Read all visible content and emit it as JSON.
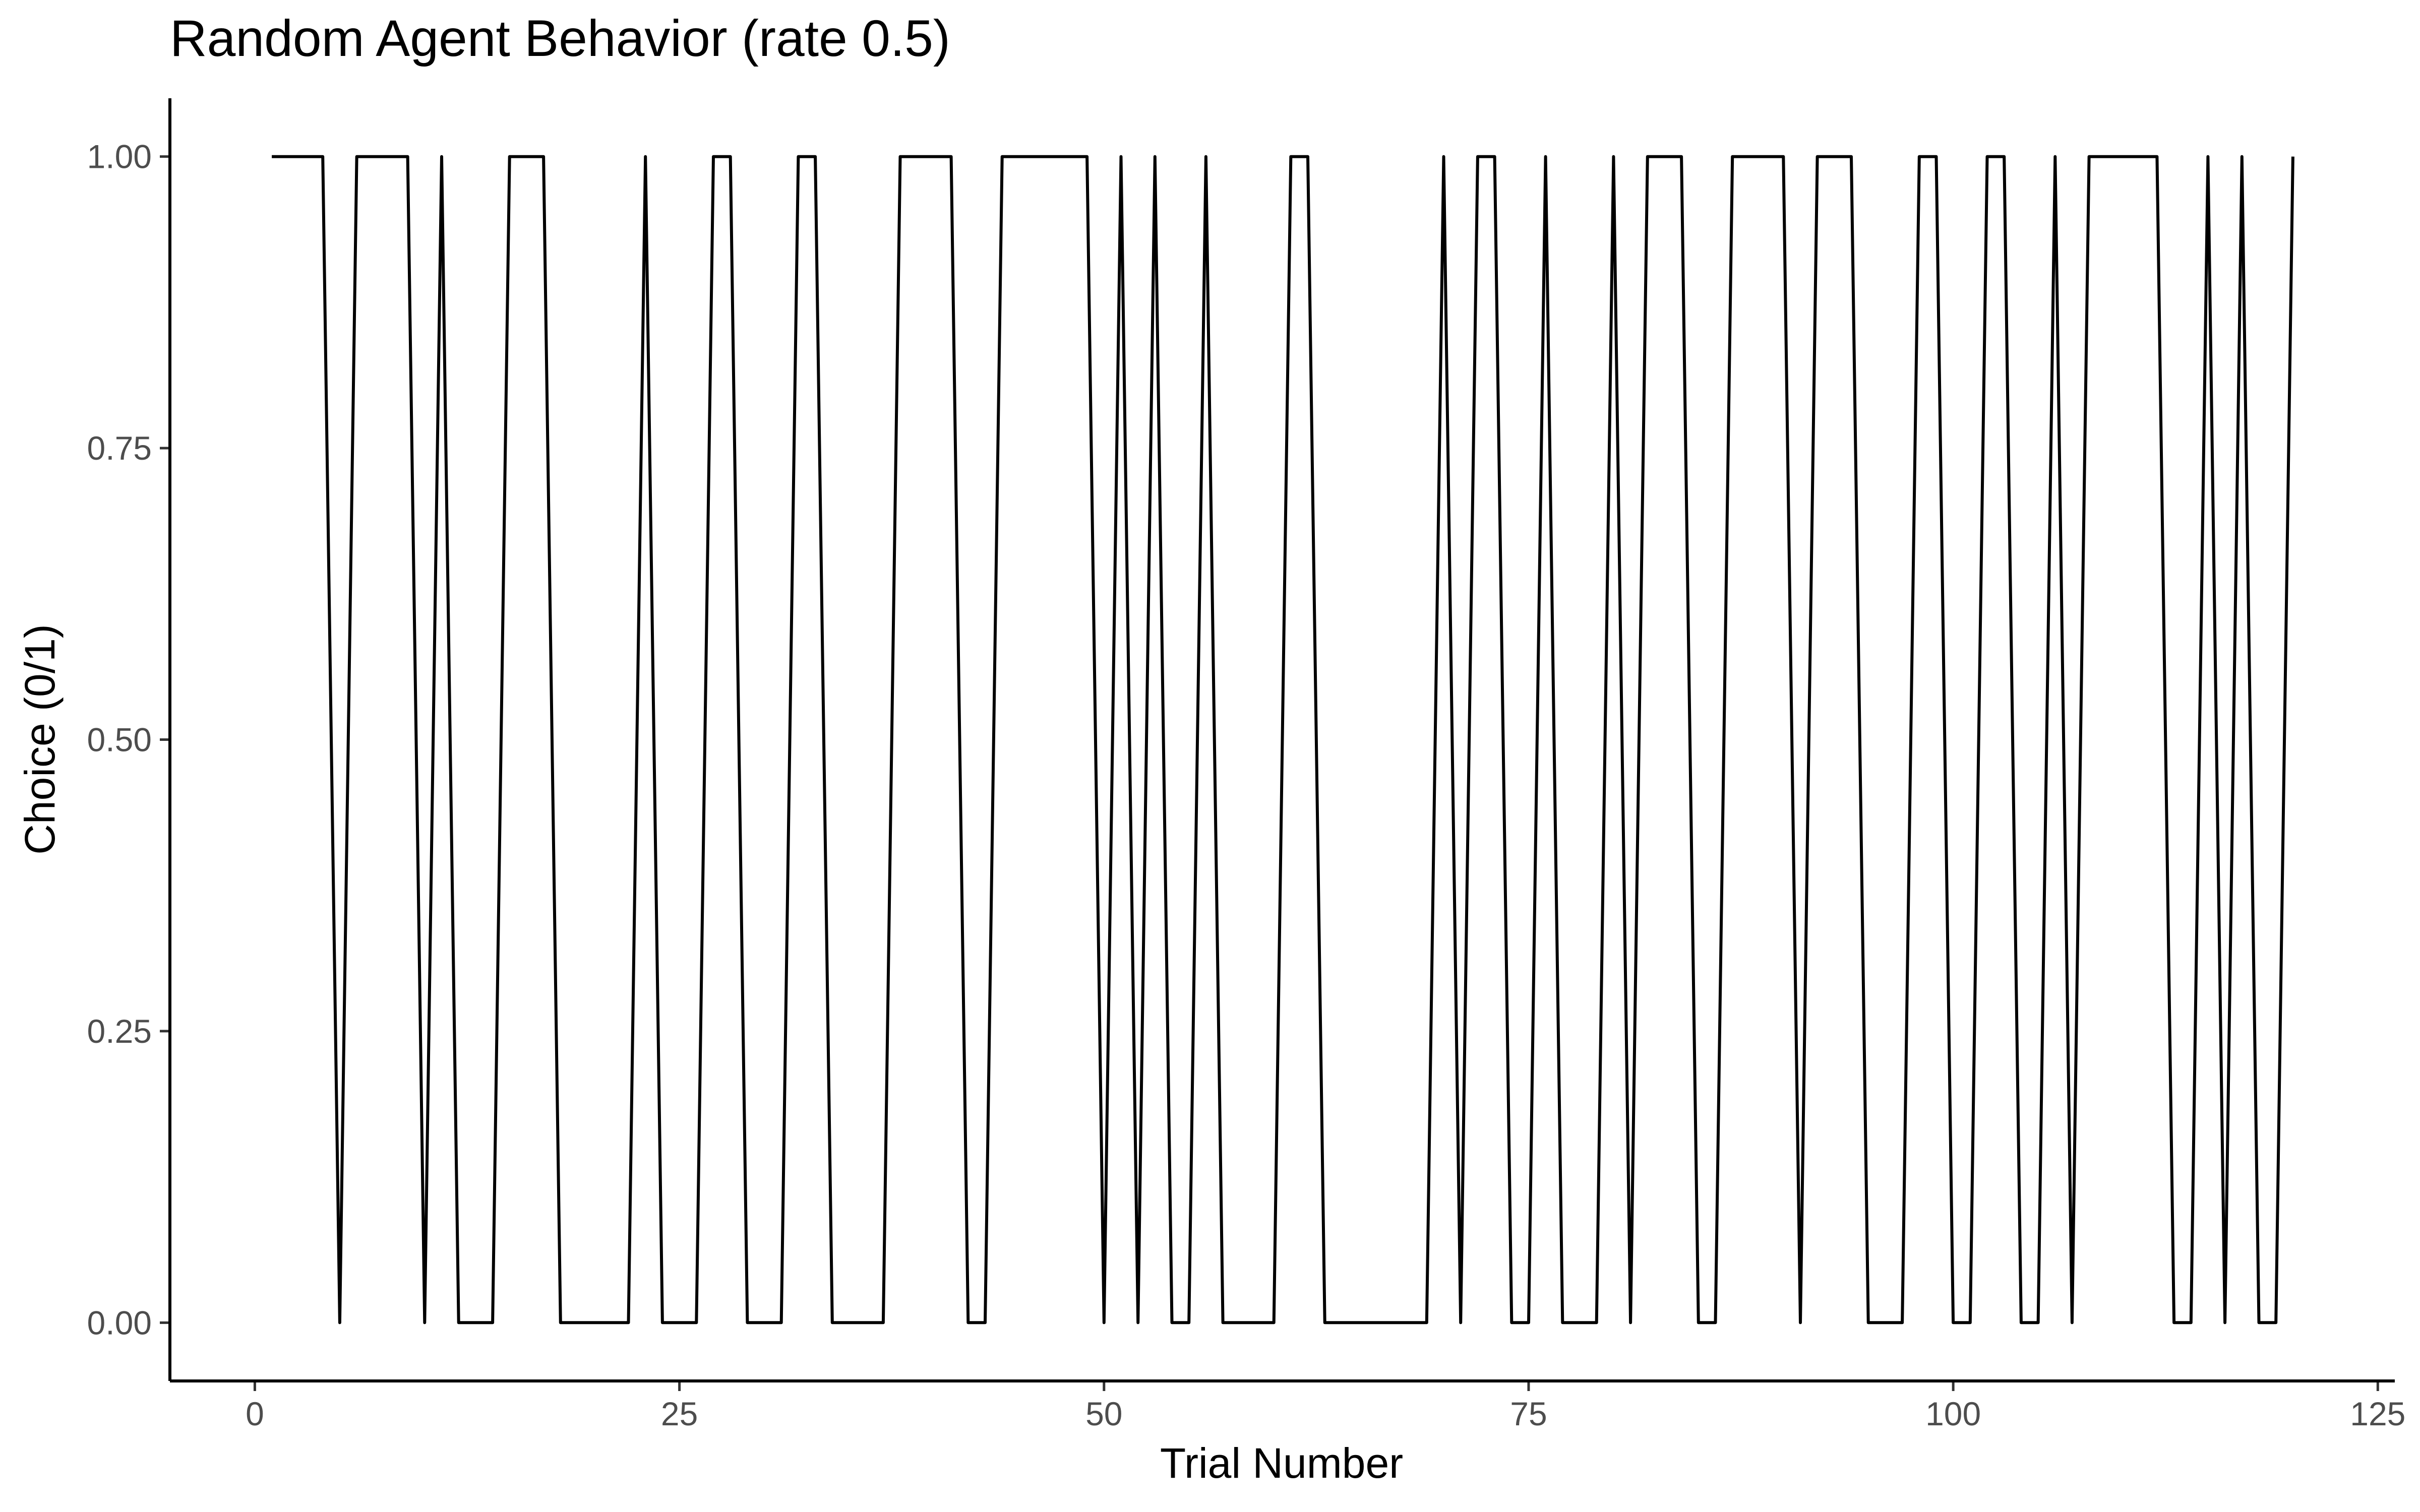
{
  "chart_data": {
    "type": "line",
    "title": "Random Agent Behavior (rate 0.5)",
    "xlabel": "Trial Number",
    "ylabel": "Choice (0/1)",
    "xlim": [
      -5,
      126
    ],
    "ylim": [
      -0.05,
      1.05
    ],
    "xticks": [
      0,
      25,
      50,
      75,
      100,
      125
    ],
    "xtick_labels": [
      "0",
      "25",
      "50",
      "75",
      "100",
      "125"
    ],
    "yticks": [
      0,
      0.25,
      0.5,
      0.75,
      1
    ],
    "ytick_labels": [
      "0.00",
      "0.25",
      "0.50",
      "0.75",
      "1.00"
    ],
    "grid": false,
    "legend": "none",
    "line_color": "#000000",
    "x": [
      1,
      2,
      3,
      4,
      5,
      6,
      7,
      8,
      9,
      10,
      11,
      12,
      13,
      14,
      15,
      16,
      17,
      18,
      19,
      20,
      21,
      22,
      23,
      24,
      25,
      26,
      27,
      28,
      29,
      30,
      31,
      32,
      33,
      34,
      35,
      36,
      37,
      38,
      39,
      40,
      41,
      42,
      43,
      44,
      45,
      46,
      47,
      48,
      49,
      50,
      51,
      52,
      53,
      54,
      55,
      56,
      57,
      58,
      59,
      60,
      61,
      62,
      63,
      64,
      65,
      66,
      67,
      68,
      69,
      70,
      71,
      72,
      73,
      74,
      75,
      76,
      77,
      78,
      79,
      80,
      81,
      82,
      83,
      84,
      85,
      86,
      87,
      88,
      89,
      90,
      91,
      92,
      93,
      94,
      95,
      96,
      97,
      98,
      99,
      100,
      101,
      102,
      103,
      104,
      105,
      106,
      107,
      108,
      109,
      110,
      111,
      112,
      113,
      114,
      115,
      116,
      117,
      118,
      119,
      120
    ],
    "y": [
      1,
      1,
      1,
      1,
      0,
      1,
      1,
      1,
      1,
      0,
      1,
      0,
      0,
      0,
      1,
      1,
      1,
      0,
      0,
      0,
      0,
      0,
      1,
      0,
      0,
      0,
      1,
      1,
      0,
      0,
      0,
      1,
      1,
      0,
      0,
      0,
      0,
      1,
      1,
      1,
      1,
      0,
      0,
      1,
      1,
      1,
      1,
      1,
      1,
      0,
      1,
      0,
      1,
      0,
      0,
      1,
      0,
      0,
      0,
      0,
      1,
      1,
      0,
      0,
      0,
      0,
      0,
      0,
      0,
      1,
      0,
      1,
      1,
      0,
      0,
      1,
      0,
      0,
      0,
      1,
      0,
      1,
      1,
      1,
      0,
      0,
      1,
      1,
      1,
      1,
      0,
      1,
      1,
      1,
      0,
      0,
      0,
      1,
      1,
      0,
      0,
      1,
      1,
      0,
      0,
      1,
      0,
      1,
      1,
      1,
      1,
      1,
      0,
      0,
      1,
      0,
      1,
      0,
      0,
      1
    ]
  }
}
